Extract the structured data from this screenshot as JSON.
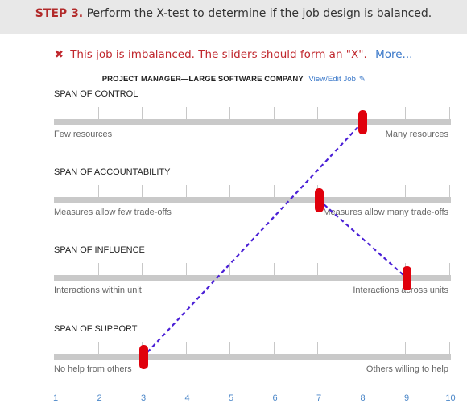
{
  "step": {
    "label": "STEP 3.",
    "text": "Perform the X-test to determine if the job design is balanced."
  },
  "status": {
    "icon": "close-icon",
    "message": "This job is imbalanced. The sliders should form an \"X\".",
    "more_link": "More...",
    "color": "#c0272d"
  },
  "job": {
    "title": "PROJECT MANAGER—LARGE SOFTWARE COMPANY",
    "edit_link": "View/Edit Job"
  },
  "spans": [
    {
      "title": "SPAN OF CONTROL",
      "min_label": "Few resources",
      "max_label": "Many resources",
      "value": 8
    },
    {
      "title": "SPAN OF ACCOUNTABILITY",
      "min_label": "Measures allow few trade-offs",
      "max_label": "Measures allow many trade-offs",
      "value": 7
    },
    {
      "title": "SPAN OF INFLUENCE",
      "min_label": "Interactions within unit",
      "max_label": "Interactions across units",
      "value": 9
    },
    {
      "title": "SPAN OF SUPPORT",
      "min_label": "No help from others",
      "max_label": "Others willing to help",
      "value": 3
    }
  ],
  "scale": [
    "1",
    "2",
    "3",
    "4",
    "5",
    "6",
    "7",
    "8",
    "9",
    "10"
  ],
  "colors": {
    "handle": "#e0000c",
    "connector": "#4a1fd6",
    "link": "#3a78c9",
    "step_label": "#b22a2a"
  }
}
